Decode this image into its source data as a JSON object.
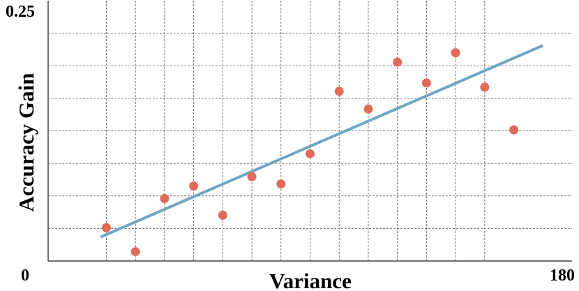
{
  "chart_data": {
    "type": "scatter",
    "title": "",
    "xlabel": "Variance",
    "ylabel": "Accuracy Gain",
    "xlim": [
      0,
      180
    ],
    "ylim": [
      0,
      0.25
    ],
    "x_tick_labels": [
      {
        "value": 0,
        "text": "0"
      },
      {
        "value": 180,
        "text": "180"
      }
    ],
    "y_tick_labels": [
      {
        "value": 0.25,
        "text": "0.25"
      }
    ],
    "grid": true,
    "legend": "none",
    "x_gridlines": [
      20,
      30,
      40,
      50,
      60,
      70,
      80,
      90,
      100,
      110,
      120,
      130,
      140,
      150
    ],
    "y_gridlines": [
      0.03125,
      0.0625,
      0.09375,
      0.125,
      0.15625,
      0.1875,
      0.21875
    ],
    "points": {
      "color": "#df6c58",
      "x": [
        20,
        30,
        40,
        50,
        60,
        70,
        80,
        90,
        100,
        110,
        120,
        130,
        140,
        150,
        160
      ],
      "y": [
        0.032,
        0.009,
        0.06,
        0.072,
        0.044,
        0.081,
        0.074,
        0.103,
        0.163,
        0.146,
        0.191,
        0.171,
        0.2,
        0.167,
        0.126
      ]
    },
    "trendline": {
      "color": "#6fa6c6",
      "x": [
        18,
        170
      ],
      "y": [
        0.023,
        0.207
      ]
    }
  }
}
